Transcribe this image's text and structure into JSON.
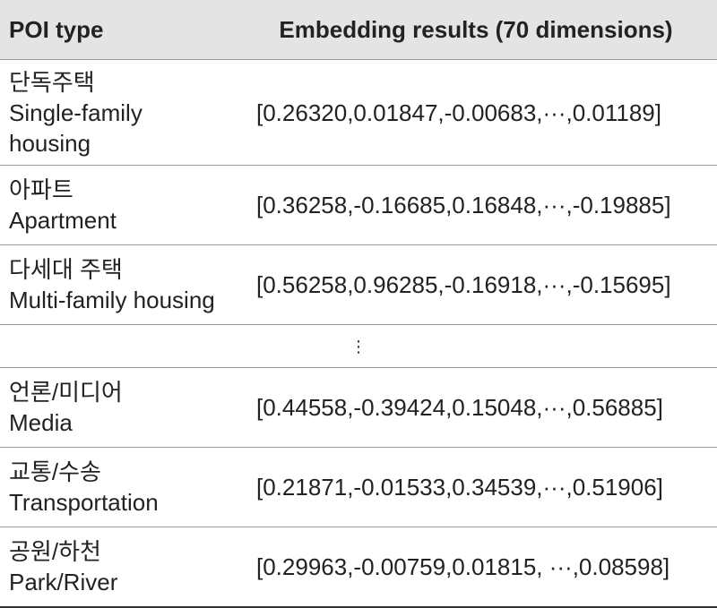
{
  "table": {
    "header": [
      "POI type",
      "Embedding results (70 dimensions)"
    ],
    "rows": [
      {
        "korean": "단독주택",
        "english": "Single-family housing",
        "embedding": "[0.26320,0.01847,-0.00683,···,0.01189]"
      },
      {
        "korean": "아파트",
        "english": "Apartment",
        "embedding": "[0.36258,-0.16685,0.16848,···,-0.19885]"
      },
      {
        "korean": "다세대 주택",
        "english": "Multi-family housing",
        "embedding": "[0.56258,0.96285,-0.16918,···,-0.15695]"
      }
    ],
    "ellipsis": "⋮",
    "rows_after": [
      {
        "korean": "언론/미디어",
        "english": "Media",
        "embedding": "[0.44558,-0.39424,0.15048,···,0.56885]"
      },
      {
        "korean": "교통/수송",
        "english": "Transportation",
        "embedding": "[0.21871,-0.01533,0.34539,···,0.51906]"
      },
      {
        "korean": "공원/하천",
        "english": "Park/River",
        "embedding": "[0.29963,-0.00759,0.01815, ···,0.08598]"
      }
    ]
  }
}
